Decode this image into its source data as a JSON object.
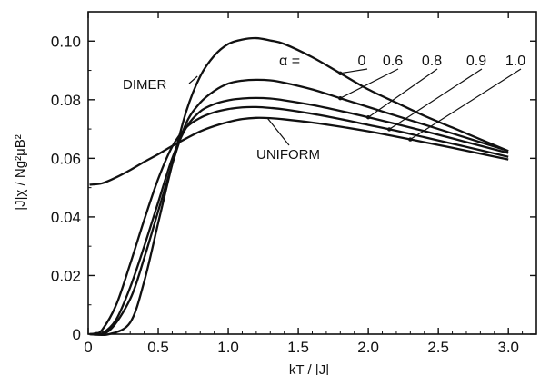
{
  "chart_data": {
    "type": "line",
    "xlabel": "kT / |J|",
    "ylabel": "|J|χ / Ng²μB²",
    "xlim": [
      0,
      3.2
    ],
    "ylim": [
      0,
      0.11
    ],
    "x_ticks": [
      0,
      0.5,
      1.0,
      1.5,
      2.0,
      2.5,
      3.0
    ],
    "x_tick_labels": [
      "0",
      "0.5",
      "1.0",
      "1.5",
      "2.0",
      "2.5",
      "3.0"
    ],
    "y_ticks": [
      0,
      0.02,
      0.04,
      0.06,
      0.08,
      0.1
    ],
    "y_tick_labels": [
      "0",
      "0.02",
      "0.04",
      "0.06",
      "0.08",
      "0.10"
    ],
    "grid": false,
    "alpha_label": "α =",
    "alpha_values": [
      "0",
      "0.6",
      "0.8",
      "0.9",
      "1.0"
    ],
    "annotations": [
      {
        "text": "DIMER"
      },
      {
        "text": "UNIFORM"
      }
    ],
    "series": [
      {
        "alpha": "0",
        "x": [
          0.01,
          0.15,
          0.3,
          0.4,
          0.5,
          0.6,
          0.7,
          0.8,
          0.9,
          1.0,
          1.1,
          1.2,
          1.3,
          1.4,
          1.6,
          1.8,
          2.0,
          2.2,
          2.4,
          2.6,
          2.8,
          3.0
        ],
        "y": [
          0.0,
          0.0,
          0.004,
          0.018,
          0.038,
          0.058,
          0.076,
          0.088,
          0.095,
          0.099,
          0.1005,
          0.101,
          0.1002,
          0.099,
          0.0945,
          0.089,
          0.0835,
          0.079,
          0.0745,
          0.0705,
          0.0665,
          0.0625
        ]
      },
      {
        "alpha": "0.6",
        "x": [
          0.01,
          0.15,
          0.3,
          0.4,
          0.5,
          0.6,
          0.7,
          0.8,
          0.9,
          1.0,
          1.1,
          1.2,
          1.3,
          1.4,
          1.6,
          1.8,
          2.0,
          2.2,
          2.4,
          2.6,
          2.8,
          3.0
        ],
        "y": [
          0.0,
          0.0012,
          0.012,
          0.026,
          0.042,
          0.058,
          0.072,
          0.079,
          0.083,
          0.0855,
          0.0865,
          0.0868,
          0.0866,
          0.0858,
          0.0835,
          0.0805,
          0.0775,
          0.0745,
          0.0715,
          0.0685,
          0.0655,
          0.0625
        ]
      },
      {
        "alpha": "0.8",
        "x": [
          0.01,
          0.1,
          0.2,
          0.3,
          0.4,
          0.5,
          0.6,
          0.7,
          0.8,
          0.9,
          1.0,
          1.1,
          1.2,
          1.3,
          1.4,
          1.6,
          1.8,
          2.0,
          2.2,
          2.4,
          2.6,
          2.8,
          3.0
        ],
        "y": [
          0.0,
          0.0003,
          0.005,
          0.016,
          0.03,
          0.045,
          0.06,
          0.0705,
          0.076,
          0.0785,
          0.0798,
          0.0804,
          0.0806,
          0.0804,
          0.0798,
          0.0782,
          0.0762,
          0.074,
          0.0717,
          0.0693,
          0.0668,
          0.0643,
          0.0618
        ]
      },
      {
        "alpha": "0.9",
        "x": [
          0.01,
          0.05,
          0.1,
          0.2,
          0.3,
          0.4,
          0.5,
          0.6,
          0.7,
          0.8,
          0.9,
          1.0,
          1.1,
          1.2,
          1.3,
          1.4,
          1.6,
          1.8,
          2.0,
          2.2,
          2.4,
          2.6,
          2.8,
          3.0
        ],
        "y": [
          0.0,
          0.0003,
          0.0015,
          0.01,
          0.024,
          0.039,
          0.053,
          0.064,
          0.0705,
          0.0738,
          0.0757,
          0.0768,
          0.0774,
          0.0775,
          0.0772,
          0.0767,
          0.0752,
          0.0734,
          0.0714,
          0.0694,
          0.0672,
          0.065,
          0.0628,
          0.0605
        ]
      },
      {
        "alpha": "1.0",
        "x": [
          0.01,
          0.1,
          0.2,
          0.3,
          0.4,
          0.5,
          0.6,
          0.7,
          0.8,
          0.9,
          1.0,
          1.1,
          1.2,
          1.3,
          1.4,
          1.6,
          1.8,
          2.0,
          2.2,
          2.4,
          2.6,
          2.8,
          3.0
        ],
        "y": [
          0.051,
          0.0515,
          0.0535,
          0.056,
          0.0588,
          0.0614,
          0.0642,
          0.0668,
          0.0692,
          0.071,
          0.0724,
          0.0734,
          0.0738,
          0.0737,
          0.0733,
          0.0722,
          0.0708,
          0.0692,
          0.0674,
          0.0655,
          0.0636,
          0.0616,
          0.0596
        ]
      }
    ]
  }
}
